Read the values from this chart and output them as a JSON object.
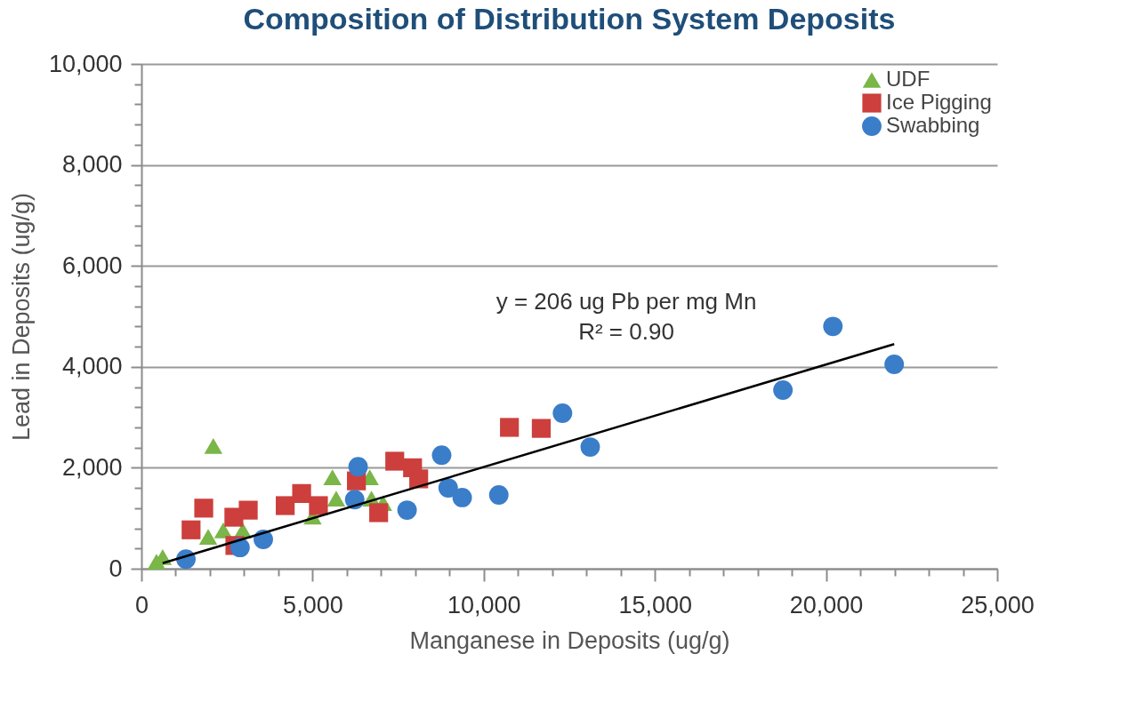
{
  "chart_data": {
    "type": "scatter",
    "title": "Composition of Distribution System Deposits",
    "xlabel": "Manganese in Deposits (ug/g)",
    "ylabel": "Lead in Deposits (ug/g)",
    "xlim": [
      0,
      25000
    ],
    "ylim": [
      0,
      10000
    ],
    "xticks": [
      0,
      {
        "value": 1000,
        "label": null
      },
      {
        "value": 2000,
        "label": null
      },
      {
        "value": 3000,
        "label": null
      },
      {
        "value": 4000,
        "label": null
      },
      {
        "value": 5000,
        "label": "5,000"
      },
      {
        "value": 6000,
        "label": null
      },
      {
        "value": 7000,
        "label": null
      },
      {
        "value": 8000,
        "label": null
      },
      {
        "value": 9000,
        "label": null
      },
      {
        "value": 10000,
        "label": "10,000"
      },
      {
        "value": 11000,
        "label": null
      },
      {
        "value": 12000,
        "label": null
      },
      {
        "value": 13000,
        "label": null
      },
      {
        "value": 14000,
        "label": null
      },
      {
        "value": 15000,
        "label": "15,000"
      },
      {
        "value": 16000,
        "label": null
      },
      {
        "value": 17000,
        "label": null
      },
      {
        "value": 18000,
        "label": null
      },
      {
        "value": 19000,
        "label": null
      },
      {
        "value": 20000,
        "label": "20,000"
      },
      {
        "value": 21000,
        "label": null
      },
      {
        "value": 22000,
        "label": null
      },
      {
        "value": 23000,
        "label": null
      },
      {
        "value": 24000,
        "label": null
      },
      {
        "value": 25000,
        "label": "25,000"
      }
    ],
    "yticks": [
      0,
      {
        "value": 400,
        "label": null
      },
      {
        "value": 800,
        "label": null
      },
      {
        "value": 1200,
        "label": null
      },
      {
        "value": 1600,
        "label": null
      },
      {
        "value": 2000,
        "label": "2,000"
      },
      {
        "value": 2400,
        "label": null
      },
      {
        "value": 2800,
        "label": null
      },
      {
        "value": 3200,
        "label": null
      },
      {
        "value": 3600,
        "label": null
      },
      {
        "value": 4000,
        "label": "4,000"
      },
      {
        "value": 4400,
        "label": null
      },
      {
        "value": 4800,
        "label": null
      },
      {
        "value": 5200,
        "label": null
      },
      {
        "value": 5600,
        "label": null
      },
      {
        "value": 6000,
        "label": "6,000"
      },
      {
        "value": 6400,
        "label": null
      },
      {
        "value": 6800,
        "label": null
      },
      {
        "value": 7200,
        "label": null
      },
      {
        "value": 7600,
        "label": null
      },
      {
        "value": 8000,
        "label": "8,000"
      },
      {
        "value": 8400,
        "label": null
      },
      {
        "value": 8800,
        "label": null
      },
      {
        "value": 9200,
        "label": null
      },
      {
        "value": 9600,
        "label": null
      },
      {
        "value": 10000,
        "label": "10,000"
      }
    ],
    "grid": "y",
    "legend": "top right",
    "series": [
      {
        "name": "UDF",
        "color": "#7ab648",
        "marker": "triangle",
        "x": [
          440,
          620,
          2100,
          1950,
          2390,
          2960,
          5000,
          5580,
          5690,
          6670,
          6720,
          7060
        ],
        "values": [
          140,
          230,
          2430,
          630,
          760,
          760,
          1030,
          1810,
          1390,
          1810,
          1390,
          1300
        ]
      },
      {
        "name": "Ice Pigging",
        "color": "#cc3f3c",
        "marker": "square",
        "x": [
          1450,
          1820,
          2700,
          2730,
          3120,
          4200,
          4680,
          5170,
          6280,
          6930,
          7400,
          7920,
          8100,
          10750,
          11680
        ],
        "values": [
          770,
          1200,
          1020,
          460,
          1160,
          1250,
          1490,
          1250,
          1740,
          1110,
          2130,
          2000,
          1780,
          2800,
          2780
        ]
      },
      {
        "name": "Swabbing",
        "color": "#3a7dc9",
        "marker": "circle",
        "x": [
          1300,
          2880,
          3560,
          6230,
          6330,
          7760,
          8770,
          8960,
          9370,
          10440,
          12300,
          13110,
          18740,
          20200,
          21990
        ],
        "values": [
          190,
          420,
          580,
          1370,
          2020,
          1160,
          2250,
          1600,
          1410,
          1460,
          3080,
          2410,
          3540,
          4800,
          4050
        ]
      },
      {
        "type": "line",
        "color": "#000000",
        "x": [
          620,
          21990
        ],
        "values": [
          110,
          4450
        ]
      }
    ],
    "annotations": [
      "y = 206 ug Pb per mg Mn",
      "R² = 0.90"
    ]
  }
}
